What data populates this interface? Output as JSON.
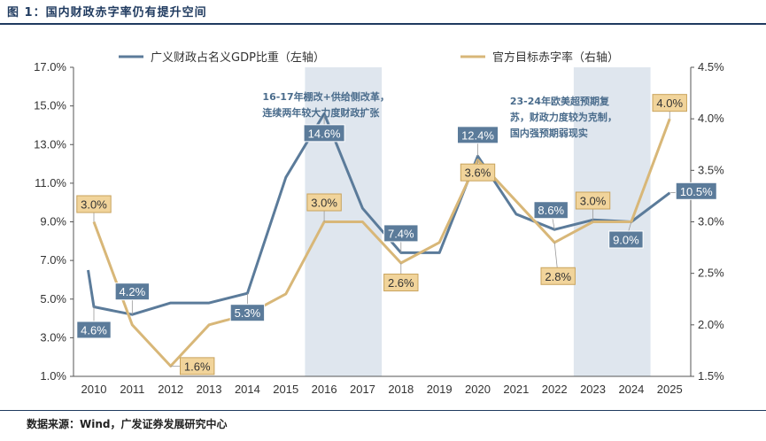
{
  "title": "图 1：国内财政赤字率仍有提升空间",
  "source": "数据来源：Wind，广发证券发展研究中心",
  "colors": {
    "series1": "#5b7b9a",
    "series2": "#d8b778",
    "band": "#dfe6ee",
    "label1_bg": "#5b7b9a",
    "label2_bg": "#f1d49b"
  },
  "chart_data": {
    "type": "line",
    "x": [
      "2010",
      "2011",
      "2012",
      "2013",
      "2014",
      "2015",
      "2016",
      "2017",
      "2018",
      "2019",
      "2020",
      "2021",
      "2022",
      "2023",
      "2024",
      "2025"
    ],
    "y_left": {
      "range": [
        1.0,
        17.0
      ],
      "ticks": [
        "1.0%",
        "3.0%",
        "5.0%",
        "7.0%",
        "9.0%",
        "11.0%",
        "13.0%",
        "15.0%",
        "17.0%"
      ]
    },
    "y_right": {
      "range": [
        1.5,
        4.5
      ],
      "ticks": [
        "1.5%",
        "2.0%",
        "2.5%",
        "3.0%",
        "3.5%",
        "4.0%",
        "4.5%"
      ]
    },
    "series": [
      {
        "name": "广义财政占名义GDP比重（左轴）",
        "axis": "left",
        "x": [
          2009.85,
          2010,
          2011,
          2012,
          2013,
          2014,
          2015,
          2016,
          2017,
          2018,
          2019,
          2020,
          2021,
          2022,
          2023,
          2024,
          2025
        ],
        "values": [
          6.5,
          4.6,
          4.2,
          4.8,
          4.8,
          5.3,
          11.3,
          14.6,
          9.7,
          7.4,
          7.4,
          12.4,
          9.4,
          8.6,
          9.1,
          9.0,
          10.5
        ]
      },
      {
        "name": "官方目标赤字率（右轴）",
        "axis": "right",
        "x": [
          2010,
          2011,
          2012,
          2013,
          2014,
          2015,
          2016,
          2017,
          2018,
          2019,
          2020,
          2021,
          2022,
          2023,
          2024,
          2025
        ],
        "values": [
          3.0,
          2.0,
          1.6,
          2.0,
          2.1,
          2.3,
          3.0,
          3.0,
          2.6,
          2.8,
          3.6,
          3.2,
          2.8,
          3.0,
          3.0,
          4.0
        ]
      }
    ],
    "data_labels": [
      {
        "series": 0,
        "x": "2010",
        "text": "4.6%"
      },
      {
        "series": 0,
        "x": "2011",
        "text": "4.2%"
      },
      {
        "series": 0,
        "x": "2014",
        "text": "5.3%"
      },
      {
        "series": 0,
        "x": "2016",
        "text": "14.6%"
      },
      {
        "series": 0,
        "x": "2018",
        "text": "7.4%"
      },
      {
        "series": 0,
        "x": "2020",
        "text": "12.4%"
      },
      {
        "series": 0,
        "x": "2022",
        "text": "8.6%"
      },
      {
        "series": 0,
        "x": "2024",
        "text": "9.0%"
      },
      {
        "series": 0,
        "x": "2025",
        "text": "10.5%"
      },
      {
        "series": 1,
        "x": "2010",
        "text": "3.0%"
      },
      {
        "series": 1,
        "x": "2012",
        "text": "1.6%"
      },
      {
        "series": 1,
        "x": "2016",
        "text": "3.0%"
      },
      {
        "series": 1,
        "x": "2018",
        "text": "2.6%"
      },
      {
        "series": 1,
        "x": "2020",
        "text": "3.6%"
      },
      {
        "series": 1,
        "x": "2022",
        "text": "2.8%"
      },
      {
        "series": 1,
        "x": "2023",
        "text": "3.0%"
      },
      {
        "series": 1,
        "x": "2025",
        "text": "4.0%"
      }
    ],
    "shaded_periods": [
      {
        "from": "2016",
        "to": "2017",
        "text": [
          "16-17年棚改+供给侧改革，",
          "连续两年较大力度财政扩张"
        ]
      },
      {
        "from": "2023",
        "to": "2024",
        "text": [
          "23-24年欧美超预期复",
          "苏，财政力度较为克制，",
          "国内强预期弱现实"
        ]
      }
    ],
    "legend_position": "top",
    "grid": false
  }
}
